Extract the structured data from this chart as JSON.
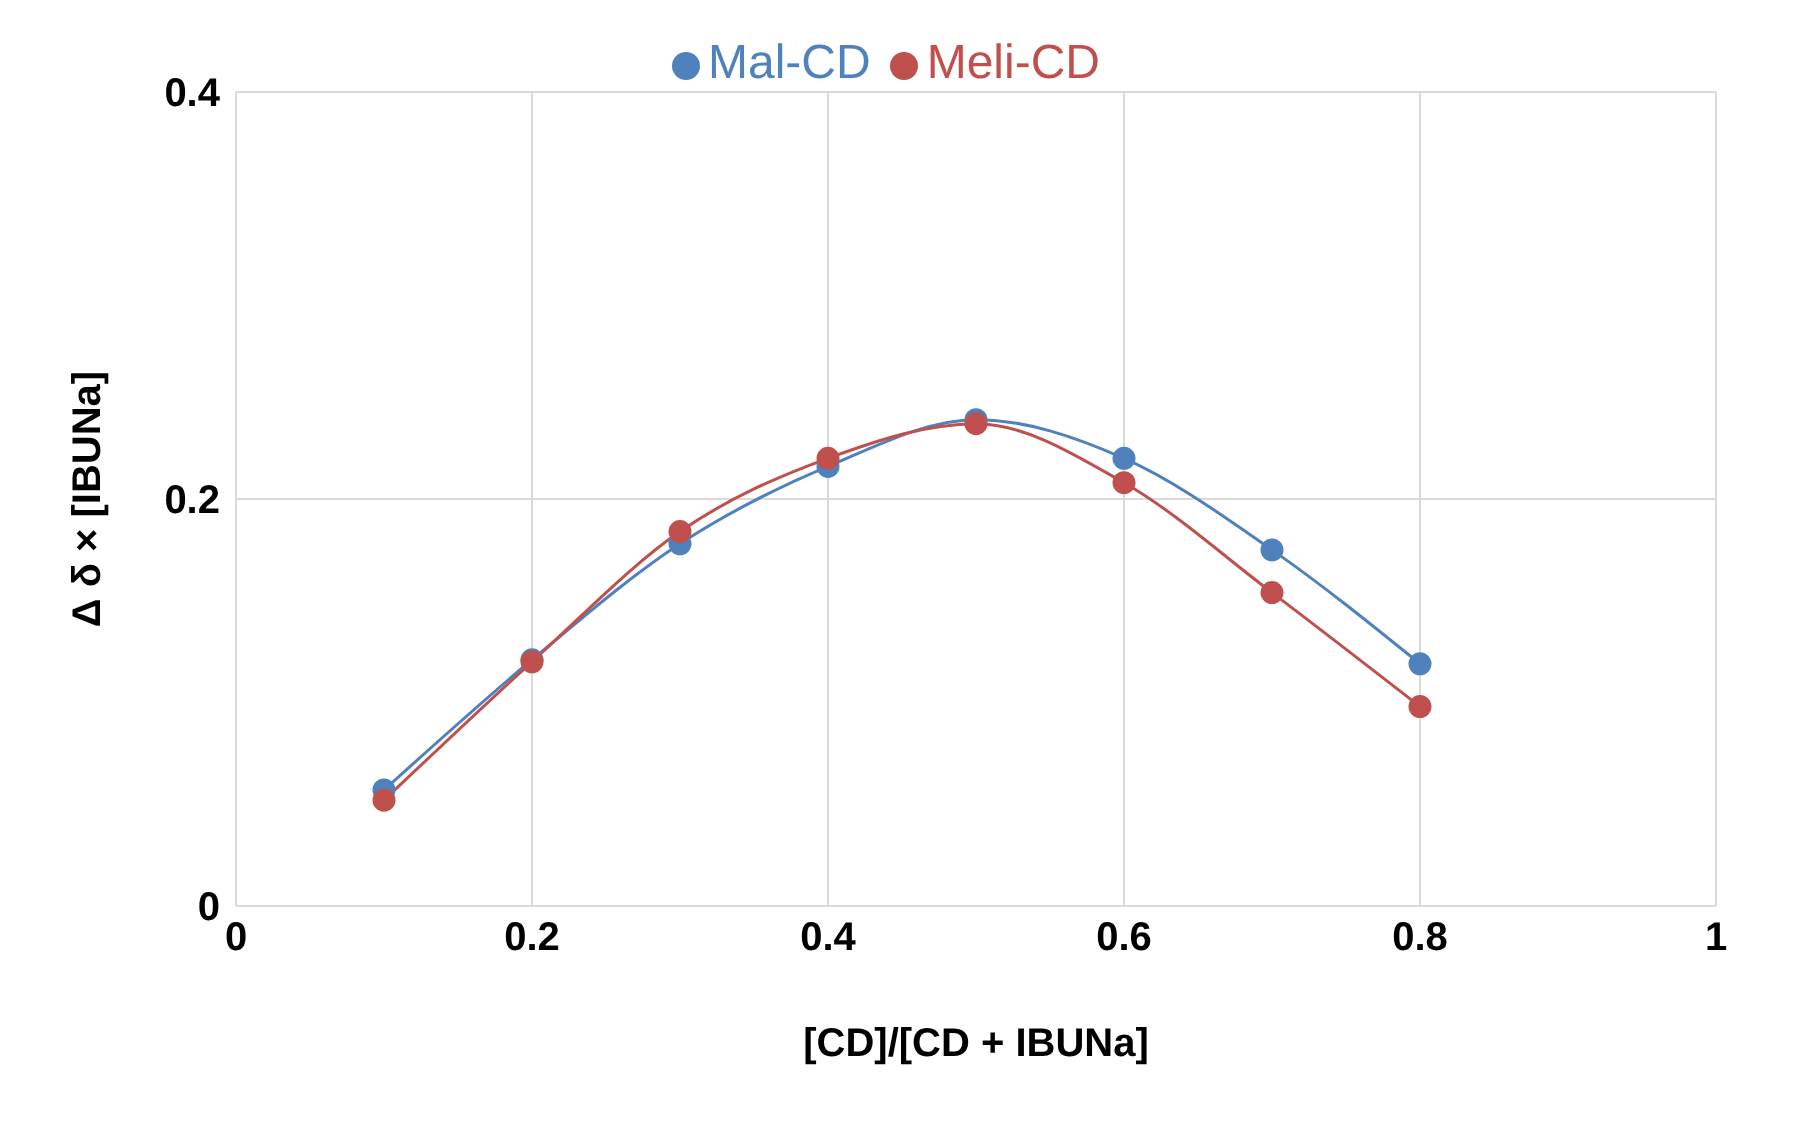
{
  "chart_data": {
    "type": "line",
    "xlabel": "[CD]/[CD + IBUNa]",
    "ylabel": "Δ δ × [IBUNa]",
    "x": [
      0.1,
      0.2,
      0.3,
      0.4,
      0.5,
      0.6,
      0.7,
      0.8
    ],
    "series": [
      {
        "name": "Mal-CD",
        "color": "#4f81bd",
        "values": [
          0.057,
          0.121,
          0.178,
          0.216,
          0.239,
          0.22,
          0.175,
          0.119
        ]
      },
      {
        "name": "Meli-CD",
        "color": "#c0504d",
        "values": [
          0.052,
          0.12,
          0.184,
          0.22,
          0.237,
          0.208,
          0.154,
          0.098
        ]
      }
    ],
    "xlim": [
      0,
      1
    ],
    "xticks": [
      0,
      0.2,
      0.4,
      0.6,
      0.8,
      1
    ],
    "ylim": [
      0,
      0.4
    ],
    "yticks": [
      0,
      0.2,
      0.4
    ],
    "grid": true,
    "legend": "top",
    "marker": "circle",
    "line_style": "solid"
  }
}
